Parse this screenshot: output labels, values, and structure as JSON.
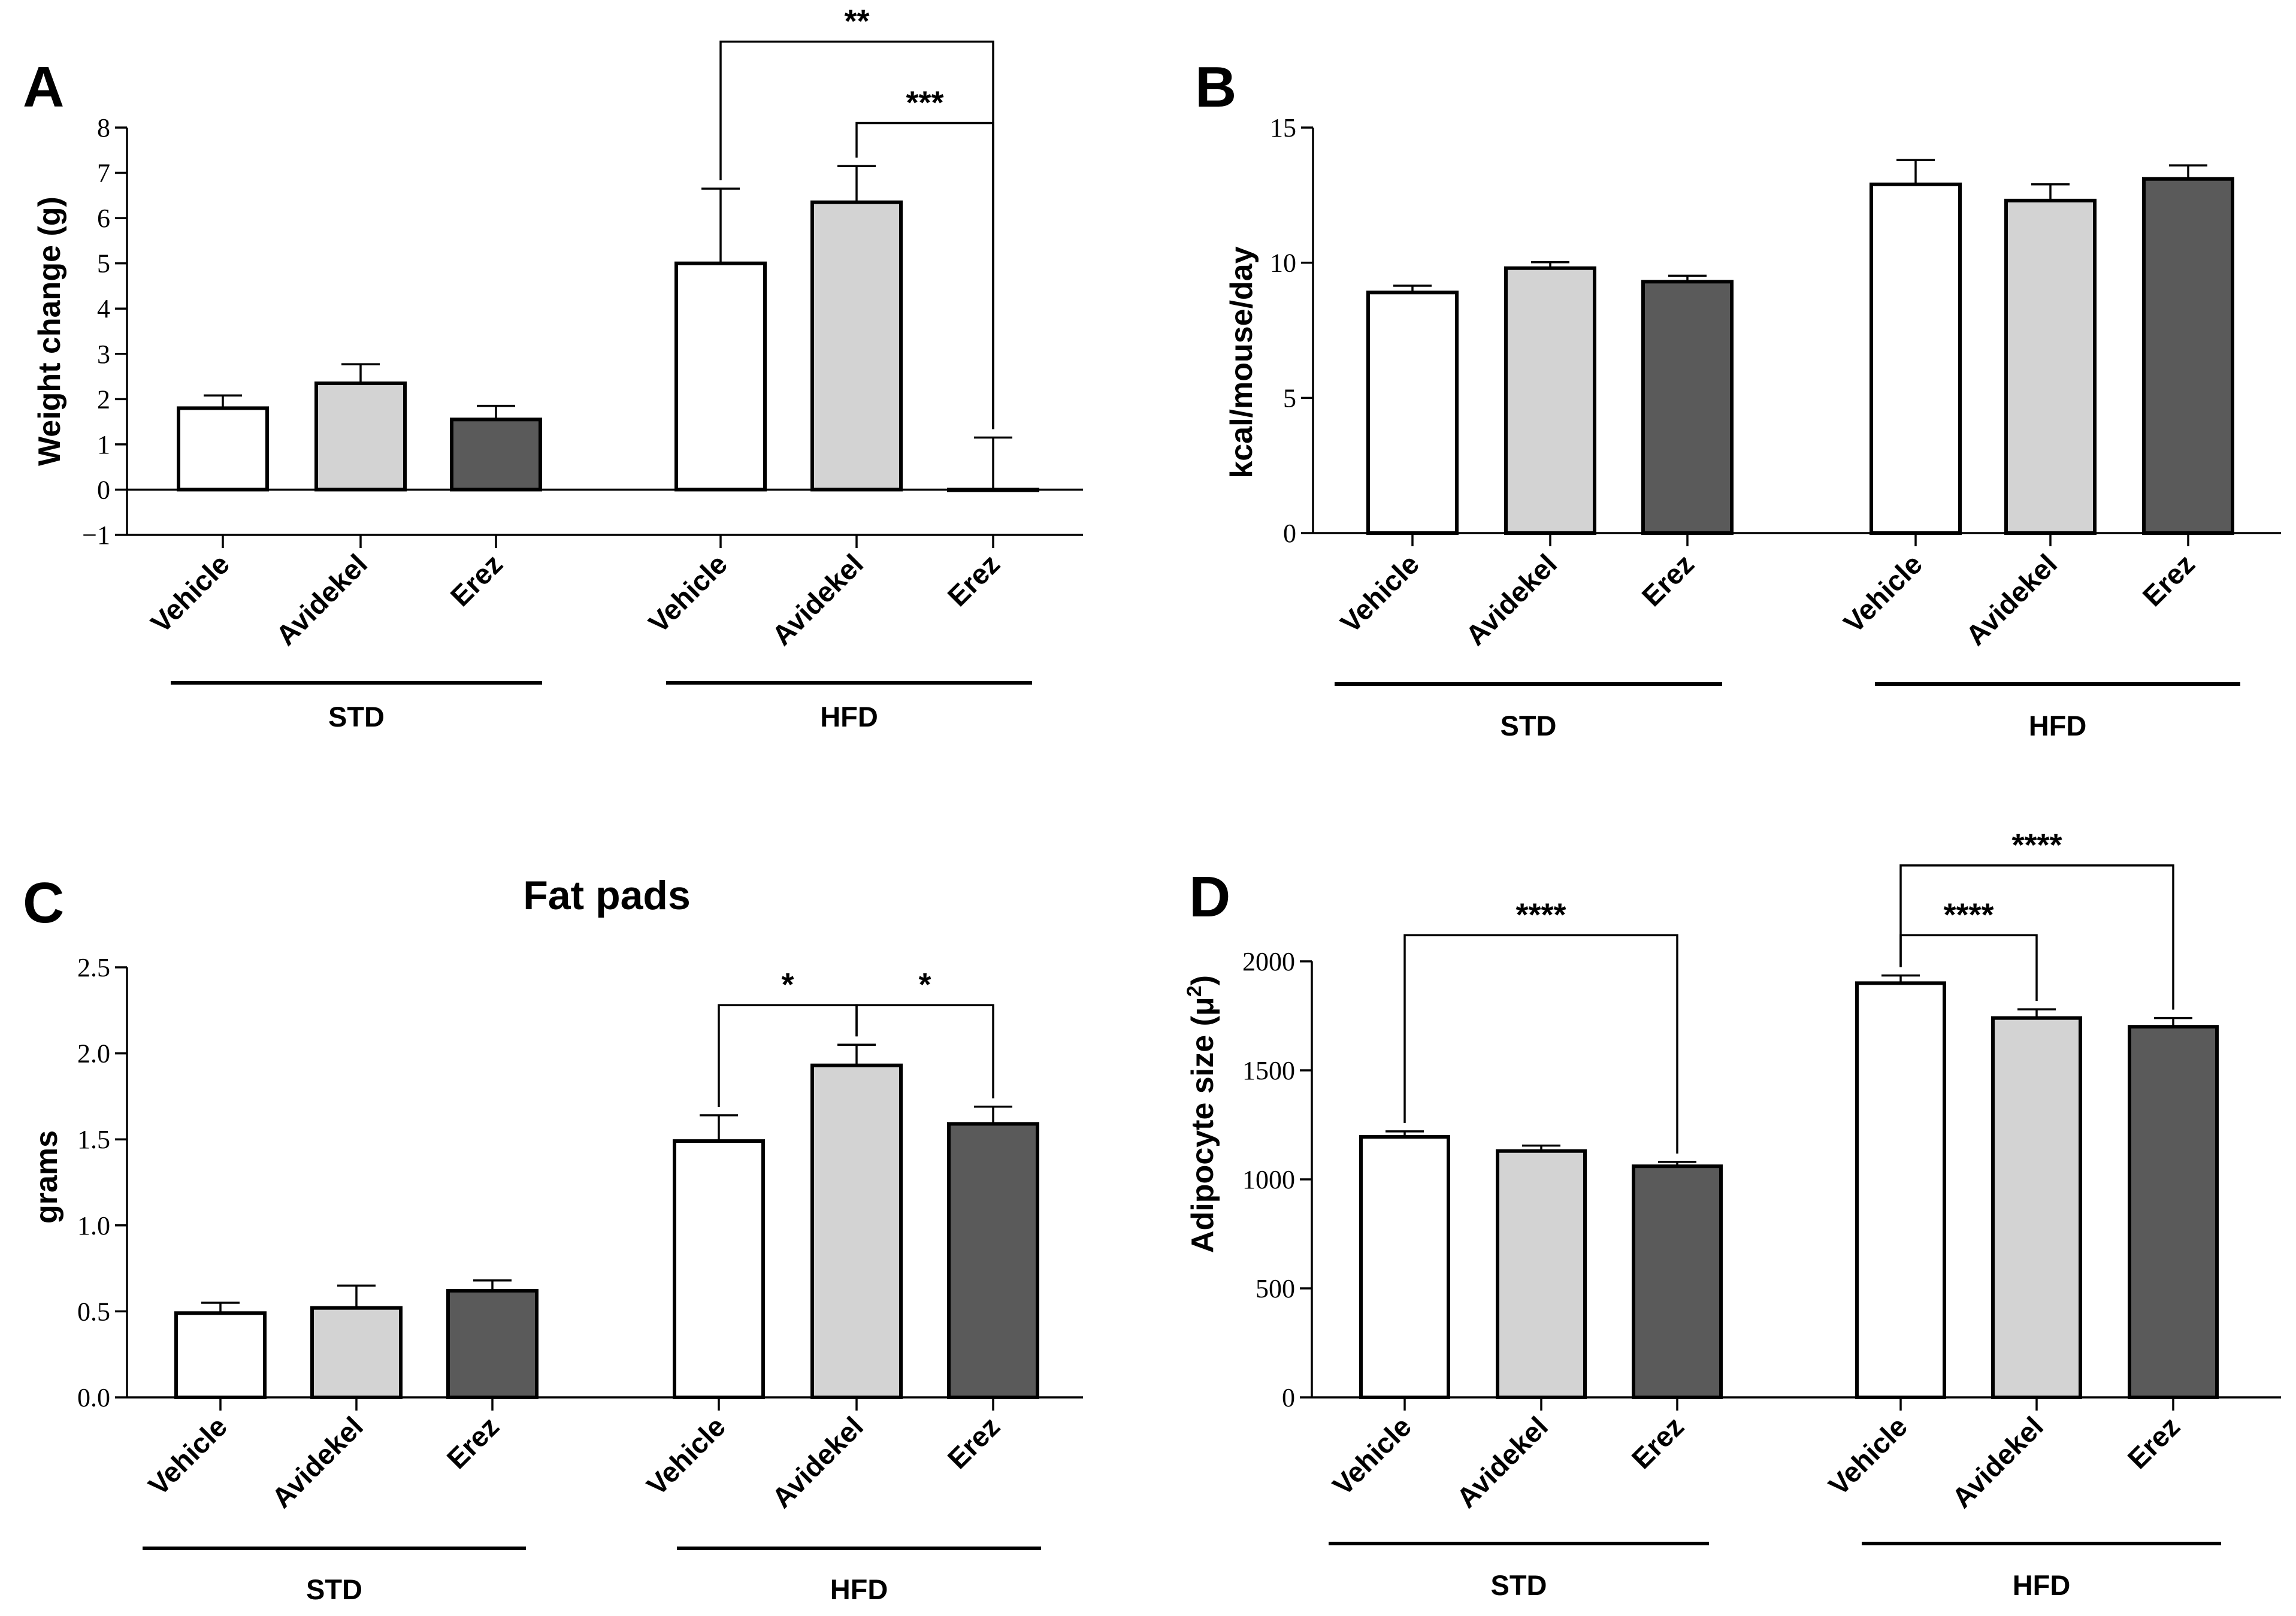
{
  "colors": {
    "vehicle": "#ffffff",
    "avidekel": "#d3d3d3",
    "erez": "#5a5a5a",
    "stroke": "#000000"
  },
  "chart_data": [
    {
      "panel": "A",
      "type": "bar",
      "title": "",
      "ylabel": "Weight change (g)",
      "ylim": [
        -1,
        8
      ],
      "yticks": [
        -1,
        0,
        1,
        2,
        3,
        4,
        5,
        6,
        7,
        8
      ],
      "ytick_labels": [
        "−1",
        "0",
        "1",
        "2",
        "3",
        "4",
        "5",
        "6",
        "7",
        "8"
      ],
      "zero_line": true,
      "categories": [
        "Vehicle",
        "Avidekel",
        "Erez",
        "Vehicle",
        "Avidekel",
        "Erez"
      ],
      "values": [
        1.8,
        2.35,
        1.55,
        5.0,
        6.35,
        0.0
      ],
      "errors": [
        0.28,
        0.42,
        0.3,
        1.65,
        0.8,
        1.15
      ],
      "fill_keys": [
        "vehicle",
        "avidekel",
        "erez",
        "vehicle",
        "avidekel",
        "erez"
      ],
      "groups": [
        {
          "label": "STD",
          "from": 0,
          "to": 2
        },
        {
          "label": "HFD",
          "from": 3,
          "to": 5
        }
      ],
      "significance": [
        {
          "from": 3,
          "to": 5,
          "label": "**",
          "y": 9.9
        },
        {
          "from": 4,
          "to": 5,
          "label": "***",
          "y": 8.1
        }
      ]
    },
    {
      "panel": "B",
      "type": "bar",
      "title": "",
      "ylabel": "kcal/mouse/day",
      "ylim": [
        0,
        15
      ],
      "yticks": [
        0,
        5,
        10,
        15
      ],
      "ytick_labels": [
        "0",
        "5",
        "10",
        "15"
      ],
      "zero_line": false,
      "categories": [
        "Vehicle",
        "Avidekel",
        "Erez",
        "Vehicle",
        "Avidekel",
        "Erez"
      ],
      "values": [
        8.9,
        9.8,
        9.3,
        12.9,
        12.3,
        13.1
      ],
      "errors": [
        0.25,
        0.22,
        0.22,
        0.9,
        0.6,
        0.5
      ],
      "fill_keys": [
        "vehicle",
        "avidekel",
        "erez",
        "vehicle",
        "avidekel",
        "erez"
      ],
      "groups": [
        {
          "label": "STD",
          "from": 0,
          "to": 2
        },
        {
          "label": "HFD",
          "from": 3,
          "to": 5
        }
      ],
      "significance": []
    },
    {
      "panel": "C",
      "type": "bar",
      "title": "Fat pads",
      "ylabel": "grams",
      "ylim": [
        0,
        2.5
      ],
      "yticks": [
        0,
        0.5,
        1.0,
        1.5,
        2.0,
        2.5
      ],
      "ytick_labels": [
        "0.0",
        "0.5",
        "1.0",
        "1.5",
        "2.0",
        "2.5"
      ],
      "zero_line": false,
      "categories": [
        "Vehicle",
        "Avidekel",
        "Erez",
        "Vehicle",
        "Avidekel",
        "Erez"
      ],
      "values": [
        0.49,
        0.52,
        0.62,
        1.49,
        1.93,
        1.59
      ],
      "errors": [
        0.06,
        0.13,
        0.06,
        0.15,
        0.12,
        0.1
      ],
      "fill_keys": [
        "vehicle",
        "avidekel",
        "erez",
        "vehicle",
        "avidekel",
        "erez"
      ],
      "groups": [
        {
          "label": "STD",
          "from": 0,
          "to": 2
        },
        {
          "label": "HFD",
          "from": 3,
          "to": 5
        }
      ],
      "significance": [
        {
          "from": 3,
          "to": 4,
          "label": "*",
          "y": 2.28
        },
        {
          "from": 4,
          "to": 5,
          "label": "*",
          "y": 2.28
        }
      ]
    },
    {
      "panel": "D",
      "type": "bar",
      "title": "",
      "ylabel": "Adipocyte size (μ",
      "ylabel_sup": "2",
      "ylabel_end": ")",
      "ylim": [
        0,
        2000
      ],
      "yticks": [
        0,
        500,
        1000,
        1500,
        2000
      ],
      "ytick_labels": [
        "0",
        "500",
        "1000",
        "1500",
        "2000"
      ],
      "zero_line": false,
      "categories": [
        "Vehicle",
        "Avidekel",
        "Erez",
        "Vehicle",
        "Avidekel",
        "Erez"
      ],
      "values": [
        1195,
        1130,
        1060,
        1900,
        1740,
        1700
      ],
      "errors": [
        25,
        25,
        20,
        35,
        40,
        40
      ],
      "fill_keys": [
        "vehicle",
        "avidekel",
        "erez",
        "vehicle",
        "avidekel",
        "erez"
      ],
      "groups": [
        {
          "label": "STD",
          "from": 0,
          "to": 2
        },
        {
          "label": "HFD",
          "from": 3,
          "to": 5
        }
      ],
      "significance": [
        {
          "from": 0,
          "to": 2,
          "label": "****",
          "y": 2120
        },
        {
          "from": 3,
          "to": 4,
          "label": "****",
          "y": 2120
        },
        {
          "from": 3,
          "to": 5,
          "label": "****",
          "y": 2440
        }
      ]
    }
  ]
}
